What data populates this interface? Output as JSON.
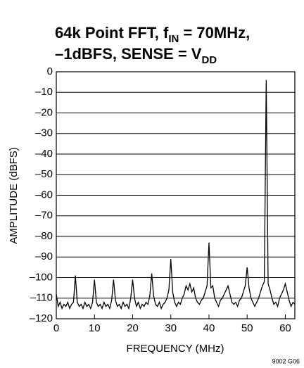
{
  "chart_data": {
    "type": "line",
    "title": [
      [
        {
          "text": "64k Point FFT, f"
        },
        {
          "text": "IN",
          "sub": true
        },
        {
          "text": " = 70MHz,"
        }
      ],
      [
        {
          "text": "–1dBFS, SENSE = V"
        },
        {
          "text": "DD",
          "sub": true
        }
      ]
    ],
    "xlabel": "FREQUENCY (MHz)",
    "ylabel": "AMPLITUDE (dBFS)",
    "annotation": "9002 G06",
    "xlim": [
      0,
      62.5
    ],
    "ylim": [
      -120,
      0
    ],
    "xticks": [
      0,
      10,
      20,
      30,
      40,
      50,
      60
    ],
    "yticks": [
      0,
      {
        "value": -10,
        "label": "–10"
      },
      {
        "value": -20,
        "label": "–20"
      },
      {
        "value": -30,
        "label": "–30"
      },
      {
        "value": -40,
        "label": "–40"
      },
      {
        "value": -50,
        "label": "–50"
      },
      {
        "value": -60,
        "label": "–60"
      },
      {
        "value": -70,
        "label": "–70"
      },
      {
        "value": -80,
        "label": "–80"
      },
      {
        "value": -90,
        "label": "–90"
      },
      {
        "value": -100,
        "label": "–100"
      },
      {
        "value": -110,
        "label": "–110"
      },
      {
        "value": -120,
        "label": "–120"
      }
    ],
    "grid": "y",
    "color": "#000000",
    "x": [
      0,
      0.5,
      1,
      1.5,
      2,
      2.5,
      3,
      3.5,
      4,
      4.5,
      5,
      5.5,
      6,
      6.5,
      7,
      7.5,
      8,
      8.5,
      9,
      9.5,
      10,
      10.5,
      11,
      11.5,
      12,
      12.5,
      13,
      13.5,
      14,
      14.5,
      15,
      15.5,
      16,
      16.5,
      17,
      17.5,
      18,
      18.5,
      19,
      19.5,
      20,
      20.5,
      21,
      21.5,
      22,
      22.5,
      23,
      23.5,
      24,
      24.5,
      25,
      25.5,
      26,
      26.5,
      27,
      27.5,
      28,
      28.5,
      29,
      29.5,
      30,
      30.5,
      31,
      31.5,
      32,
      32.5,
      33,
      33.5,
      34,
      34.5,
      35,
      35.5,
      36,
      36.5,
      37,
      37.5,
      38,
      38.5,
      39,
      39.5,
      40,
      40.5,
      41,
      41.5,
      42,
      42.5,
      43,
      43.5,
      44,
      44.5,
      45,
      45.5,
      46,
      46.5,
      47,
      47.5,
      48,
      48.5,
      49,
      49.5,
      50,
      50.5,
      51,
      51.5,
      52,
      52.5,
      53,
      53.5,
      54,
      54.5,
      55,
      55.5,
      56,
      56.5,
      57,
      57.5,
      58,
      58.5,
      59,
      59.5,
      60,
      60.5,
      61,
      61.5,
      62,
      62.5
    ],
    "values": [
      -108,
      -114,
      -112,
      -115,
      -113,
      -114,
      -112,
      -115,
      -113,
      -112,
      -99,
      -112,
      -114,
      -113,
      -115,
      -112,
      -114,
      -113,
      -115,
      -112,
      -101,
      -112,
      -114,
      -113,
      -115,
      -112,
      -114,
      -113,
      -115,
      -111,
      -101,
      -111,
      -114,
      -113,
      -115,
      -112,
      -114,
      -113,
      -115,
      -110,
      -101,
      -110,
      -114,
      -112,
      -115,
      -113,
      -114,
      -112,
      -113,
      -109,
      -98,
      -109,
      -113,
      -114,
      -112,
      -115,
      -113,
      -112,
      -110,
      -106,
      -91,
      -107,
      -112,
      -114,
      -112,
      -113,
      -110,
      -108,
      -104,
      -106,
      -103,
      -107,
      -105,
      -110,
      -112,
      -113,
      -111,
      -110,
      -107,
      -104,
      -83,
      -105,
      -104,
      -110,
      -112,
      -114,
      -111,
      -110,
      -108,
      -106,
      -104,
      -108,
      -112,
      -113,
      -112,
      -114,
      -111,
      -110,
      -107,
      -104,
      -95,
      -105,
      -110,
      -112,
      -114,
      -112,
      -110,
      -107,
      -104,
      -102,
      -4,
      -103,
      -106,
      -110,
      -113,
      -112,
      -114,
      -110,
      -108,
      -106,
      -103,
      -107,
      -111,
      -114,
      -112,
      -113
    ]
  }
}
